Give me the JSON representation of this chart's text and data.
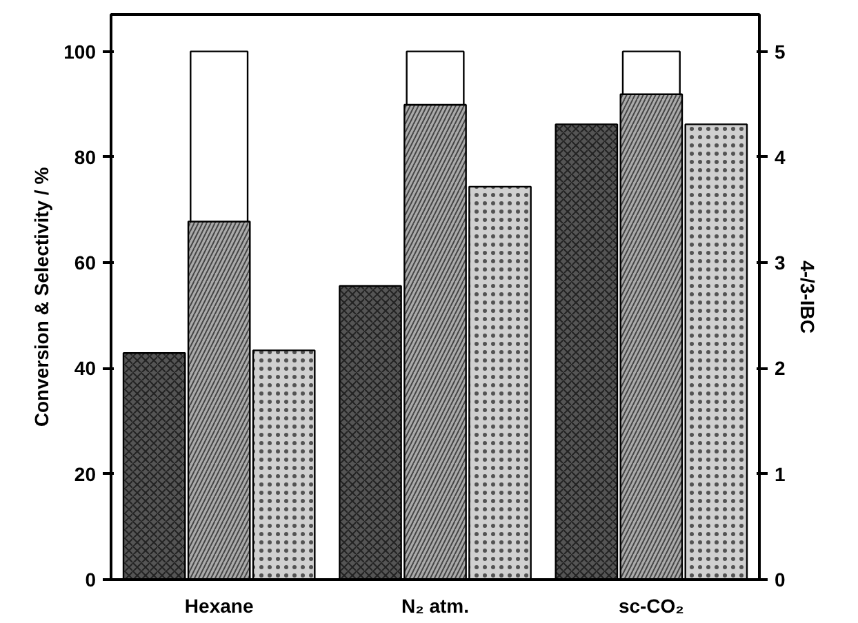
{
  "chart_data": {
    "type": "bar",
    "categories": [
      "Hexane",
      "N₂ atm.",
      "sc-CO₂"
    ],
    "ylabel": "Conversion & Selectivity / %",
    "y2label": "4-/3-IBC",
    "ylim": [
      0,
      107
    ],
    "yticks": [
      0,
      20,
      40,
      60,
      80,
      100
    ],
    "y2lim": [
      0,
      5.35
    ],
    "y2ticks": [
      0,
      1,
      2,
      3,
      4,
      5
    ],
    "grid": false,
    "series": [
      {
        "color": "#555555",
        "values": [
          42.9,
          55.6,
          86.2
        ]
      },
      {
        "color": "#aaaaaa",
        "values": [
          67.8,
          89.9,
          91.9
        ]
      },
      {
        "color": "#ffffff",
        "values": [
          32.2,
          10.1,
          8.1
        ],
        "base": [
          67.8,
          89.9,
          91.9
        ]
      },
      {
        "color": "#d0d0d0",
        "values": [
          2.17,
          3.72,
          4.31
        ],
        "axis": "y2"
      }
    ]
  }
}
